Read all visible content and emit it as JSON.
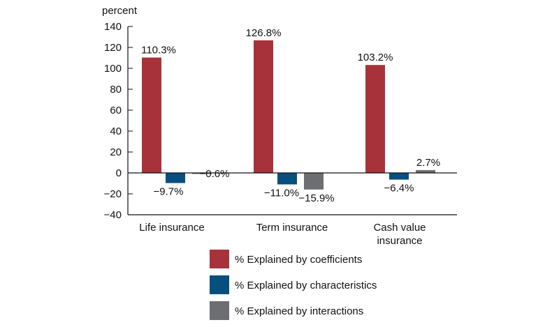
{
  "chart_data": {
    "type": "bar",
    "title": "",
    "ylabel": "percent",
    "xlabel": "",
    "ylim": [
      -40,
      140
    ],
    "yticks": [
      140,
      120,
      100,
      80,
      60,
      40,
      20,
      0,
      -20,
      -40
    ],
    "ytick_labels": [
      "140",
      "120",
      "100",
      "80",
      "60",
      "40",
      "20",
      "0",
      "−20",
      "−40"
    ],
    "categories": [
      [
        "Life insurance"
      ],
      [
        "Term insurance"
      ],
      [
        "Cash value",
        "insurance"
      ]
    ],
    "series": [
      {
        "name": "% Explained by coefficients",
        "color": "#a8323a",
        "values": [
          110.3,
          126.8,
          103.2
        ],
        "labels": [
          "110.3%",
          "126.8%",
          "103.2%"
        ]
      },
      {
        "name": "% Explained by characteristics",
        "color": "#064f7e",
        "values": [
          -9.7,
          -11.0,
          -6.4
        ],
        "labels": [
          "−9.7%",
          "−11.0%",
          "−6.4%"
        ]
      },
      {
        "name": "% Explained by interactions",
        "color": "#6d6e71",
        "values": [
          -0.6,
          -15.9,
          2.7
        ],
        "labels": [
          "−0.6%",
          "−15.9%",
          "2.7%"
        ]
      }
    ],
    "grid": false,
    "legend_position": "bottom"
  }
}
